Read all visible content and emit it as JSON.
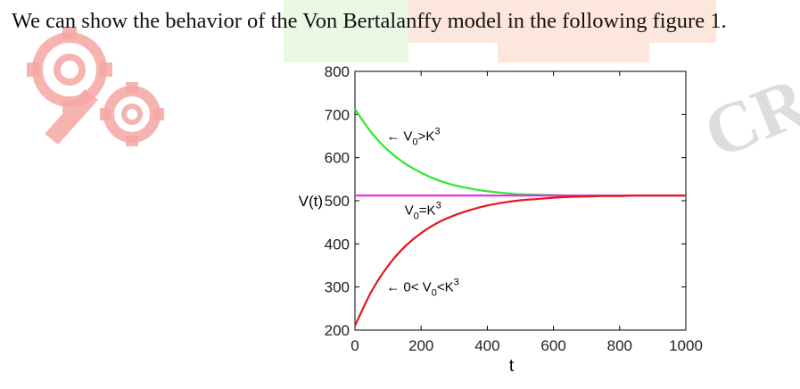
{
  "text": {
    "sentence": "We can show the behavior of the Von Bertalanffy model in the following figure 1."
  },
  "colors": {
    "green_curve": "#2ee82e",
    "magenta_curve": "#ee22ee",
    "red_curve": "#e8141e",
    "watermark_red": "#f5a7a4",
    "watermark_gray": "#cfcfcf"
  },
  "chart_data": {
    "type": "line",
    "title": "",
    "xlabel": "t",
    "ylabel": "V(t)",
    "xlim": [
      0,
      1000
    ],
    "ylim": [
      200,
      800
    ],
    "xticks": [
      0,
      200,
      400,
      600,
      800,
      1000
    ],
    "yticks": [
      200,
      300,
      400,
      500,
      600,
      700,
      800
    ],
    "xtick_labels": [
      "0",
      "200",
      "400",
      "600",
      "800",
      "1000"
    ],
    "ytick_labels": [
      "200",
      "300",
      "400",
      "500",
      "600",
      "700",
      "800"
    ],
    "grid": false,
    "series": [
      {
        "color": "#2ee82e",
        "x": [
          0,
          50,
          100,
          150,
          200,
          250,
          300,
          350,
          400,
          450,
          500,
          550,
          600,
          650,
          700,
          750,
          800,
          850,
          900,
          950,
          1000
        ],
        "y": [
          712,
          658,
          617,
          587,
          565,
          548,
          536,
          528,
          522,
          518,
          515,
          514,
          513,
          512,
          512,
          512,
          512,
          512,
          512,
          512,
          512
        ]
      },
      {
        "color": "#ee22ee",
        "x": [
          0,
          1000
        ],
        "y": [
          512,
          512
        ]
      },
      {
        "color": "#e8141e",
        "x": [
          0,
          50,
          100,
          150,
          200,
          250,
          300,
          350,
          400,
          450,
          500,
          550,
          600,
          650,
          700,
          750,
          800,
          850,
          900,
          950,
          1000
        ],
        "y": [
          210,
          290,
          349,
          393,
          425,
          449,
          466,
          479,
          489,
          496,
          501,
          504,
          507,
          509,
          510,
          511,
          511,
          512,
          512,
          512,
          512
        ]
      }
    ],
    "annotations": [
      {
        "arrow": "←",
        "base": "V",
        "sub": "0",
        "rel": ">",
        "mid": "K",
        "sup": "3",
        "x": 95,
        "y": 640
      },
      {
        "arrow": "",
        "base": "V",
        "sub": "0",
        "rel": "=",
        "mid": "K",
        "sup": "3",
        "x": 150,
        "y": 468
      },
      {
        "arrow": "← 0<",
        "base": "V",
        "sub": "0",
        "rel": "<",
        "mid": "K",
        "sup": "3",
        "x": 95,
        "y": 290
      }
    ]
  }
}
